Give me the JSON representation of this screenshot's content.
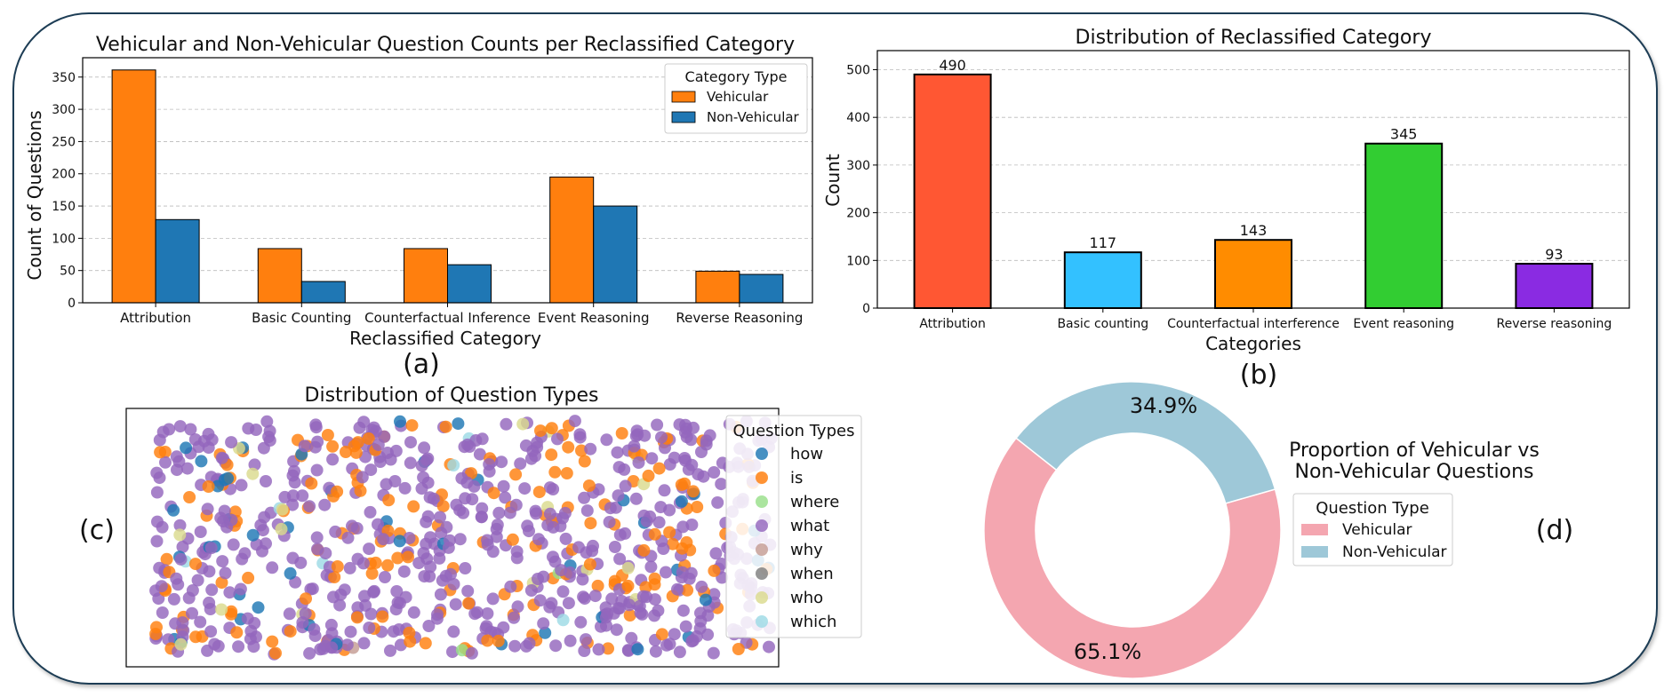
{
  "panel_labels": {
    "a": "(a)",
    "b": "(b)",
    "c": "(c)",
    "d": "(d)"
  },
  "chart_data": [
    {
      "id": "a",
      "type": "bar",
      "title": "Vehicular and Non-Vehicular Question Counts per Reclassified Category",
      "xlabel": "Reclassified Category",
      "ylabel": "Count of Questions",
      "categories": [
        "Attribution",
        "Basic Counting",
        "Counterfactual Inference",
        "Event Reasoning",
        "Reverse Reasoning"
      ],
      "series": [
        {
          "name": "Vehicular",
          "color": "#ff7f0e",
          "values": [
            361,
            84,
            84,
            195,
            49
          ]
        },
        {
          "name": "Non-Vehicular",
          "color": "#1f77b4",
          "values": [
            129,
            33,
            59,
            150,
            44
          ]
        }
      ],
      "ylim": [
        0,
        380
      ],
      "yticks": [
        0,
        50,
        100,
        150,
        200,
        250,
        300,
        350
      ],
      "legend": {
        "title": "Category Type",
        "placement": "top-right"
      },
      "grid": "y-dashed"
    },
    {
      "id": "b",
      "type": "bar",
      "title": "Distribution of Reclassified Category",
      "xlabel": "Categories",
      "ylabel": "Count",
      "categories": [
        "Attribution",
        "Basic counting",
        "Counterfactual interference",
        "Event reasoning",
        "Reverse reasoning"
      ],
      "values": [
        490,
        117,
        143,
        345,
        93
      ],
      "colors": [
        "#ff5733",
        "#33c1ff",
        "#ff8c00",
        "#32cd32",
        "#8a2be2"
      ],
      "ylim": [
        0,
        540
      ],
      "yticks": [
        0,
        100,
        200,
        300,
        400,
        500
      ],
      "grid": "y-dashed"
    },
    {
      "id": "c",
      "type": "scatter",
      "title": "Distribution of Question Types",
      "legend": {
        "title": "Question Types",
        "placement": "right"
      },
      "categories": [
        {
          "name": "how",
          "color": "#1f77b4",
          "count": 45
        },
        {
          "name": "is",
          "color": "#ff7f0e",
          "count": 180
        },
        {
          "name": "where",
          "color": "#98df8a",
          "count": 2
        },
        {
          "name": "what",
          "color": "#9467bd",
          "count": 600
        },
        {
          "name": "why",
          "color": "#c49c94",
          "count": 1
        },
        {
          "name": "when",
          "color": "#7f7f7f",
          "count": 0
        },
        {
          "name": "who",
          "color": "#dbdb8d",
          "count": 18
        },
        {
          "name": "which",
          "color": "#9edae5",
          "count": 6
        }
      ],
      "axes": "off"
    },
    {
      "id": "d",
      "type": "pie",
      "title": "Proportion of Vehicular vs\nNon-Vehicular Questions",
      "donut": true,
      "slices": [
        {
          "name": "Vehicular",
          "value": 65.1,
          "label": "65.1%",
          "color": "#f4a6b0"
        },
        {
          "name": "Non-Vehicular",
          "value": 34.9,
          "label": "34.9%",
          "color": "#9ec8d8"
        }
      ],
      "legend": {
        "title": "Question Type",
        "placement": "right"
      }
    }
  ]
}
